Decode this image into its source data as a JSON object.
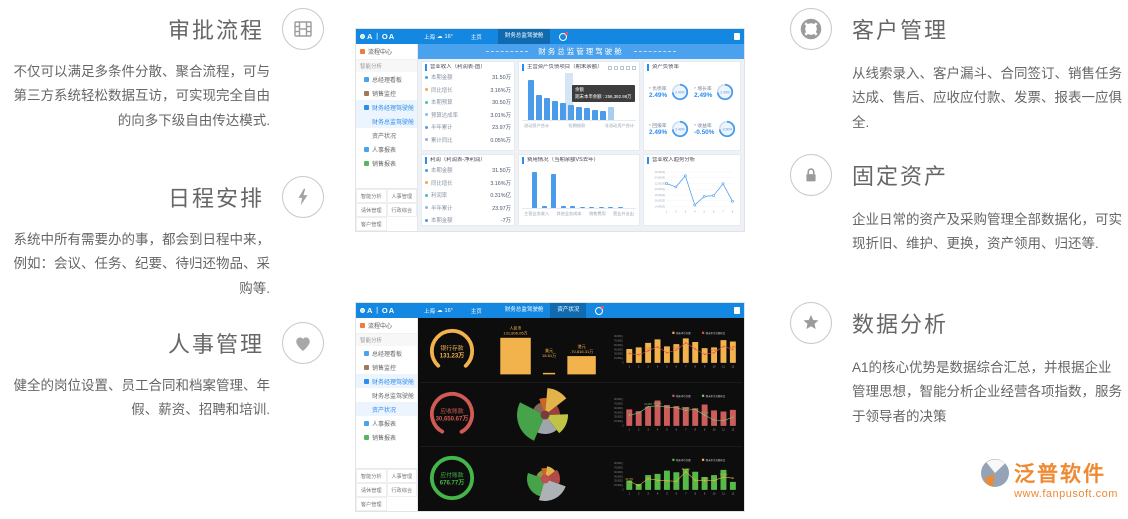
{
  "features": {
    "left": [
      {
        "title": "审批流程",
        "icon": "film-icon",
        "desc": "不仅可以满足多条件分散、聚合流程，可与第三方系统轻松数据互访，可实现完全自由的向多下级自由传达模式."
      },
      {
        "title": "日程安排",
        "icon": "bolt-icon",
        "desc": "系统中所有需要办的事，都会到日程中来，例如：会议、任务、纪要、待归还物品、采购等."
      },
      {
        "title": "人事管理",
        "icon": "heart-icon",
        "desc": "健全的岗位设置、员工合同和档案管理、年假、薪资、招聘和培训."
      }
    ],
    "right": [
      {
        "title": "客户管理",
        "icon": "lifering-icon",
        "desc": "从线索录入、客户漏斗、合同签订、销售任务达成、售后、应收应付款、发票、报表一应俱全."
      },
      {
        "title": "固定资产",
        "icon": "lock-icon",
        "desc": "企业日常的资产及采购管理全部数据化，可实现折旧、维护、更换，资产领用、归还等."
      },
      {
        "title": "数据分析",
        "icon": "star-icon",
        "desc": "A1的核心优势是数据综合汇总，并根据企业管理思想，智能分析企业经营各项指数，服务于领导者的决策"
      }
    ]
  },
  "brand": {
    "name": "泛普软件",
    "url": "www.fanpusoft.com"
  },
  "dash": {
    "logo": "A︱OA",
    "city": "上海",
    "temp": "16°",
    "home": "主页",
    "tabs_light": [
      "财务总监驾驶舱"
    ],
    "tabs_dark": [
      "财务总监驾驶舱",
      "资产状况"
    ],
    "banner": "财务总监管理驾驶舱",
    "sidebar": {
      "top": "流程中心",
      "section": "智能分析",
      "active_light": "财务总监驾驶舱",
      "active_dark": "资产状况",
      "items": [
        {
          "label": "总经理看板",
          "color": "#4aa3ef"
        },
        {
          "label": "销售监控",
          "color": "#a0785a"
        },
        {
          "label": "财务经理驾驶舱",
          "color": "#2d8cf0",
          "active": true
        },
        {
          "label": "财务总监驾驶舱",
          "sub": true
        },
        {
          "label": "资产状况",
          "sub": true
        },
        {
          "label": "人事报表",
          "color": "#4aa3ef"
        },
        {
          "label": "销售报表",
          "color": "#58b65c"
        }
      ],
      "tabs": [
        "智能分析",
        "人事管理",
        "请休管理",
        "行政综合",
        "客户管理"
      ]
    },
    "dark_rows": [
      {
        "label": "银行存款",
        "value": "131.23万",
        "color": "#f2b24c",
        "pct": 0.76
      },
      {
        "label": "应收账款",
        "value": "30,650.67万",
        "color": "#d05a54",
        "pct": 0.84
      },
      {
        "label": "应付账款",
        "value": "676.77万",
        "color": "#45b649",
        "pct": 1
      }
    ]
  },
  "chart_data": [
    {
      "id": "revenue-stats",
      "type": "table",
      "title": "营业收入（利润表-图）",
      "rows": [
        [
          "本期金额",
          "31.50万"
        ],
        [
          "同比增长",
          "3.16%万"
        ],
        [
          "本期预算",
          "30.50万"
        ],
        [
          "预算达成率",
          "3.01%万"
        ],
        [
          "半年累计",
          "23.97万"
        ],
        [
          "累计同比",
          "0.05%万"
        ]
      ]
    },
    {
      "id": "balance-items",
      "type": "bar",
      "title": "主营资产负债项目（期末余额）",
      "categories": [
        "流动资产合计",
        "短期借款",
        "非流动资产合计"
      ],
      "values": [
        88,
        56,
        48,
        43,
        38,
        33,
        29,
        26,
        23,
        19,
        30
      ],
      "tooltip_title": "余额",
      "tooltip": "期末本币余额 : 256,382.98万",
      "toolbar_icons": [
        "download-icon",
        "compare-icon",
        "filter-icon",
        "list-icon",
        "grid-icon"
      ]
    },
    {
      "id": "asset-ratios",
      "type": "gauge",
      "title": "资产负债率",
      "items": [
        {
          "label": "负债率",
          "value": "2.49%"
        },
        {
          "label": "增长率",
          "value": "2.49%"
        },
        {
          "label": "回报率",
          "value": "2.49%"
        },
        {
          "label": "收益率",
          "value": "-0.50%"
        }
      ]
    },
    {
      "id": "profit-stats",
      "type": "table",
      "title": "利润（利润表-净利润）",
      "rows": [
        [
          "本期金额",
          "31.50万"
        ],
        [
          "同比增长",
          "3.16%万"
        ],
        [
          "利润率",
          "0.31%亿"
        ],
        [
          "半年累计",
          "23.97万"
        ],
        [
          "本期金额",
          "-7万"
        ]
      ]
    },
    {
      "id": "expense-bars",
      "type": "bar",
      "title": "费用情况（当期余额VS去年）",
      "categories": [
        "主营业务收入",
        "其他业务成本",
        "销售费用",
        "营业外支出"
      ],
      "values": [
        92,
        6,
        88,
        5,
        4,
        3,
        3,
        2,
        2,
        2
      ]
    },
    {
      "id": "revenue-trend",
      "type": "line",
      "title": "营业收入趋势分析",
      "x": [
        1,
        2,
        3,
        4,
        5,
        6,
        7,
        8
      ],
      "values": [
        22000,
        20800,
        24700,
        14500,
        17500,
        17800,
        21900,
        15800
      ],
      "ylim": [
        14000,
        26000
      ],
      "yticks": [
        "26,000万",
        "24,000万",
        "22,000万",
        "20,000万",
        "18,000万",
        "16,000万",
        "14,000万"
      ]
    },
    {
      "id": "bank-by-currency",
      "type": "bar",
      "groups": [
        {
          "label": "人民币",
          "value": "131,806.05万"
        },
        {
          "label": "美元",
          "value": "18.61万"
        },
        {
          "label": "港元",
          "value": "-70,816.31万"
        }
      ]
    },
    {
      "id": "bank-monthly",
      "type": "bar",
      "bar_color": "#f2b24c",
      "line_color": "#d9534f",
      "legend": [
        "期末本币余额",
        "期末本币余额同比"
      ],
      "months": [
        1,
        2,
        3,
        4,
        5,
        6,
        7,
        8,
        9,
        10,
        11,
        12
      ],
      "bars": [
        52,
        58,
        75,
        88,
        62,
        70,
        92,
        78,
        55,
        58,
        85,
        80
      ],
      "line": [
        35,
        30,
        45,
        60,
        38,
        48,
        75,
        52,
        32,
        38,
        62,
        50
      ],
      "point_labels": [
        {
          "i": 2,
          "t": "55.22%"
        },
        {
          "i": 5,
          "t": "71.67%"
        },
        {
          "i": 9,
          "t": "40.39%"
        },
        {
          "i": 11,
          "t": "2.38%"
        }
      ],
      "yticks": [
        "90,000万",
        "75,000万",
        "60,000万",
        "45,000万",
        "30,000万",
        "15,000万",
        "0"
      ]
    },
    {
      "id": "receivable-by-currency",
      "type": "pie",
      "center": "#7a3b3b",
      "slices": [
        {
          "f": 0.07,
          "r": 17,
          "c": "#e06a28"
        },
        {
          "f": 0.13,
          "r": 27,
          "c": "#f3c14e"
        },
        {
          "f": 0.1,
          "r": 15,
          "c": "#a94442"
        },
        {
          "f": 0.15,
          "r": 23,
          "c": "#cdd24b"
        },
        {
          "f": 0.17,
          "r": 19,
          "c": "#aab2b8"
        },
        {
          "f": 0.26,
          "r": 28,
          "c": "#4caf50"
        },
        {
          "f": 0.12,
          "r": 13,
          "c": "#8d6e63"
        }
      ]
    },
    {
      "id": "receivable-monthly",
      "type": "bar",
      "bar_color": "#cd5c5c",
      "line_color": "#7cc576",
      "legend": [
        "期末本币余额",
        "期末本币余额同比"
      ],
      "months": [
        1,
        2,
        3,
        4,
        5,
        6,
        7,
        8,
        9,
        10,
        11,
        12
      ],
      "bars": [
        62,
        55,
        72,
        95,
        78,
        74,
        70,
        66,
        80,
        58,
        54,
        60
      ],
      "line": [
        40,
        48,
        72,
        75,
        70,
        68,
        58,
        62,
        40,
        22,
        20,
        32
      ],
      "point_labels": [
        {
          "i": 2,
          "t": "24.43%"
        },
        {
          "i": 3,
          "t": "80.45%"
        },
        {
          "i": 6,
          "t": "52.48%"
        },
        {
          "i": 8,
          "t": "23.21%"
        }
      ],
      "yticks": [
        "90,000万",
        "75,000万",
        "60,000万",
        "45,000万",
        "30,000万",
        "15,000万",
        "0"
      ]
    },
    {
      "id": "payable-by-currency",
      "type": "pie",
      "center": "#c0504d",
      "slices": [
        {
          "f": 0.08,
          "r": 11,
          "c": "#e06a28"
        },
        {
          "f": 0.12,
          "r": 13,
          "c": "#f3c14e"
        },
        {
          "f": 0.16,
          "r": 15,
          "c": "#c0504d"
        },
        {
          "f": 0.24,
          "r": 22,
          "c": "#b9bfc4"
        },
        {
          "f": 0.26,
          "r": 18,
          "c": "#4caf50"
        },
        {
          "f": 0.14,
          "r": 9,
          "c": "#97a548"
        }
      ]
    },
    {
      "id": "payable-monthly",
      "type": "bar",
      "bar_color": "#57b947",
      "line_color": "#f2b24c",
      "legend": [
        "期末本币余额",
        "期末本币余额同比"
      ],
      "months": [
        1,
        2,
        3,
        4,
        5,
        6,
        7,
        8,
        9,
        10,
        11,
        12
      ],
      "bars": [
        35,
        22,
        55,
        60,
        72,
        66,
        78,
        68,
        48,
        55,
        75,
        30
      ],
      "line": [
        32,
        16,
        42,
        36,
        34,
        32,
        68,
        36,
        34,
        35,
        48,
        44
      ],
      "point_labels": [
        {
          "i": 0,
          "t": "34.77%"
        },
        {
          "i": 6,
          "t": "66.46%"
        },
        {
          "i": 8,
          "t": "24.56%"
        },
        {
          "i": 10,
          "t": "77.09%"
        }
      ],
      "yticks": [
        "90,000万",
        "75,000万",
        "60,000万",
        "45,000万",
        "30,000万",
        "15,000万",
        "0"
      ]
    }
  ]
}
